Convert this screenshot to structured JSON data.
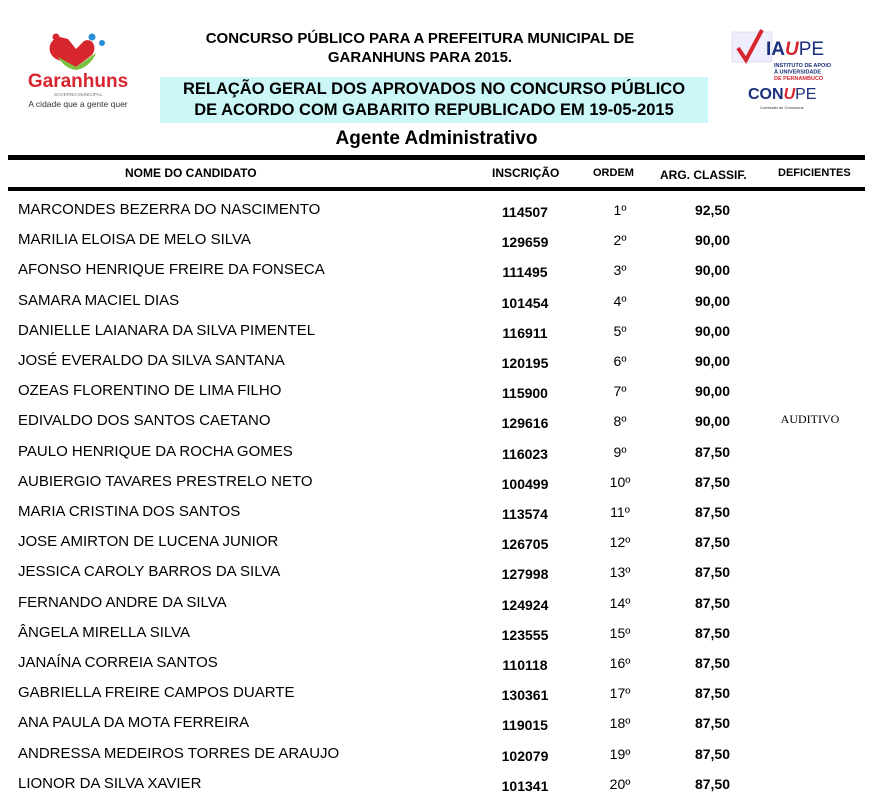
{
  "header": {
    "title_line1": "CONCURSO PÚBLICO PARA A PREFEITURA MUNICIPAL DE",
    "title_line2": "GARANHUNS PARA 2015.",
    "banner_line1": "RELAÇÃO GERAL DOS APROVADOS NO CONCURSO PÚBLICO",
    "banner_line2": "DE ACORDO COM GABARITO REPUBLICADO EM 19-05-2015",
    "cargo": "Agente Administrativo",
    "banner_color": "#ccf7f8"
  },
  "logos": {
    "left": {
      "name": "Garanhuns",
      "sub": "GOVERNO MUNICIPAL",
      "slogan": "A cidade que a gente quer"
    },
    "right": {
      "name": "IAUPE",
      "sub": "INSTITUTO DE APOIO À UNIVERSIDADE DE PERNAMBUCO",
      "name2": "CONUPE",
      "sub2": "Comissão de Concursos"
    }
  },
  "table": {
    "headers": {
      "name": "NOME DO CANDIDATO",
      "inscricao": "INSCRIÇÃO",
      "ordem": "ORDEM",
      "classif": "ARG. CLASSIF.",
      "deficientes": "DEFICIENTES"
    },
    "rows": [
      {
        "name": "MARCONDES BEZERRA DO NASCIMENTO",
        "inscricao": "114507",
        "ordem": "1º",
        "classif": "92,50",
        "deficiente": ""
      },
      {
        "name": "MARILIA ELOISA DE MELO SILVA",
        "inscricao": "129659",
        "ordem": "2º",
        "classif": "90,00",
        "deficiente": ""
      },
      {
        "name": "AFONSO HENRIQUE FREIRE DA FONSECA",
        "inscricao": "111495",
        "ordem": "3º",
        "classif": "90,00",
        "deficiente": ""
      },
      {
        "name": "SAMARA MACIEL DIAS",
        "inscricao": "101454",
        "ordem": "4º",
        "classif": "90,00",
        "deficiente": ""
      },
      {
        "name": "DANIELLE LAIANARA DA SILVA PIMENTEL",
        "inscricao": "116911",
        "ordem": "5º",
        "classif": "90,00",
        "deficiente": ""
      },
      {
        "name": "JOSÉ EVERALDO DA SILVA SANTANA",
        "inscricao": "120195",
        "ordem": "6º",
        "classif": "90,00",
        "deficiente": ""
      },
      {
        "name": "OZEAS FLORENTINO DE LIMA FILHO",
        "inscricao": "115900",
        "ordem": "7º",
        "classif": "90,00",
        "deficiente": ""
      },
      {
        "name": "EDIVALDO DOS SANTOS CAETANO",
        "inscricao": "129616",
        "ordem": "8º",
        "classif": "90,00",
        "deficiente": "AUDITIVO"
      },
      {
        "name": "PAULO HENRIQUE DA ROCHA GOMES",
        "inscricao": "116023",
        "ordem": "9º",
        "classif": "87,50",
        "deficiente": ""
      },
      {
        "name": "AUBIERGIO TAVARES PRESTRELO NETO",
        "inscricao": "100499",
        "ordem": "10º",
        "classif": "87,50",
        "deficiente": ""
      },
      {
        "name": "MARIA CRISTINA DOS SANTOS",
        "inscricao": "113574",
        "ordem": "11º",
        "classif": "87,50",
        "deficiente": ""
      },
      {
        "name": "JOSE AMIRTON DE LUCENA JUNIOR",
        "inscricao": "126705",
        "ordem": "12º",
        "classif": "87,50",
        "deficiente": ""
      },
      {
        "name": "JESSICA CAROLY BARROS DA SILVA",
        "inscricao": "127998",
        "ordem": "13º",
        "classif": "87,50",
        "deficiente": ""
      },
      {
        "name": "FERNANDO ANDRE DA SILVA",
        "inscricao": "124924",
        "ordem": "14º",
        "classif": "87,50",
        "deficiente": ""
      },
      {
        "name": "ÂNGELA MIRELLA SILVA",
        "inscricao": "123555",
        "ordem": "15º",
        "classif": "87,50",
        "deficiente": ""
      },
      {
        "name": "JANAÍNA CORREIA SANTOS",
        "inscricao": "110118",
        "ordem": "16º",
        "classif": "87,50",
        "deficiente": ""
      },
      {
        "name": "GABRIELLA FREIRE CAMPOS DUARTE",
        "inscricao": "130361",
        "ordem": "17º",
        "classif": "87,50",
        "deficiente": ""
      },
      {
        "name": "ANA PAULA DA MOTA FERREIRA",
        "inscricao": "119015",
        "ordem": "18º",
        "classif": "87,50",
        "deficiente": ""
      },
      {
        "name": "ANDRESSA MEDEIROS TORRES DE ARAUJO",
        "inscricao": "102079",
        "ordem": "19º",
        "classif": "87,50",
        "deficiente": ""
      },
      {
        "name": "LIONOR DA SILVA XAVIER",
        "inscricao": "101341",
        "ordem": "20º",
        "classif": "87,50",
        "deficiente": ""
      }
    ]
  }
}
